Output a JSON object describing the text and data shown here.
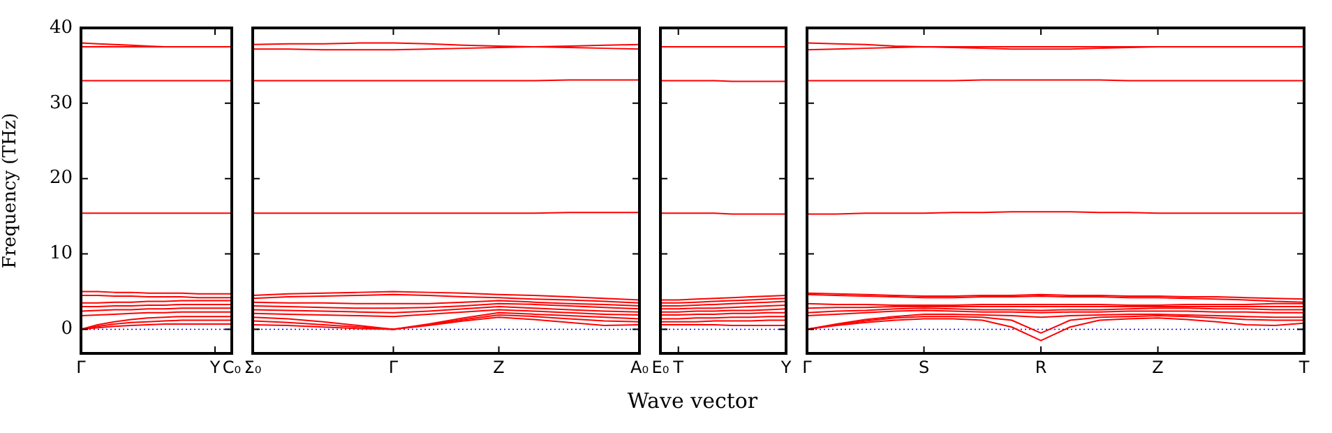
{
  "chart_data": [
    {
      "type": "line",
      "ylabel": "Frequency (THz)",
      "ylim": [
        -3.2,
        40
      ],
      "yticks": [
        0,
        10,
        20,
        30,
        40
      ],
      "marker": "none",
      "legend": false,
      "ref_lines": [
        {
          "axis": "y",
          "value": 0,
          "color": "#0000ff",
          "line_style": "dotted"
        }
      ],
      "categories": [
        "Γ",
        null,
        null,
        null,
        null,
        null,
        null,
        null,
        "Y",
        "C₀"
      ],
      "series": [
        {
          "color": "#ff0000",
          "values": [
            0,
            0.2,
            0.4,
            0.5,
            0.6,
            0.7,
            0.7,
            0.7,
            0.7,
            0.7
          ]
        },
        {
          "color": "#ff0000",
          "values": [
            0,
            0.4,
            0.7,
            0.9,
            1.0,
            1.1,
            1.2,
            1.2,
            1.2,
            1.2
          ]
        },
        {
          "color": "#ff0000",
          "values": [
            0,
            0.6,
            1.0,
            1.3,
            1.5,
            1.6,
            1.7,
            1.7,
            1.7,
            1.7
          ]
        },
        {
          "color": "#ff0000",
          "values": [
            1.8,
            1.9,
            2.0,
            2.1,
            2.2,
            2.2,
            2.3,
            2.3,
            2.3,
            2.3
          ]
        },
        {
          "color": "#ff0000",
          "values": [
            2.4,
            2.5,
            2.6,
            2.6,
            2.7,
            2.7,
            2.8,
            2.8,
            2.8,
            2.8
          ]
        },
        {
          "color": "#ff0000",
          "values": [
            3.0,
            3.0,
            3.1,
            3.1,
            3.2,
            3.2,
            3.3,
            3.3,
            3.3,
            3.3
          ]
        },
        {
          "color": "#ff0000",
          "values": [
            3.5,
            3.5,
            3.6,
            3.6,
            3.7,
            3.7,
            3.8,
            3.8,
            3.8,
            3.8
          ]
        },
        {
          "color": "#ff0000",
          "values": [
            4.5,
            4.5,
            4.4,
            4.4,
            4.3,
            4.3,
            4.3,
            4.2,
            4.2,
            4.2
          ]
        },
        {
          "color": "#ff0000",
          "values": [
            5.0,
            5.0,
            4.9,
            4.9,
            4.8,
            4.8,
            4.8,
            4.7,
            4.7,
            4.7
          ]
        },
        {
          "color": "#ff0000",
          "values": [
            15.4,
            15.4,
            15.4,
            15.4,
            15.4,
            15.4,
            15.4,
            15.4,
            15.4,
            15.4
          ]
        },
        {
          "color": "#ff0000",
          "values": [
            33.0,
            33.0,
            33.0,
            33.0,
            33.0,
            33.0,
            33.0,
            33.0,
            33.0,
            33.0
          ]
        },
        {
          "color": "#ff0000",
          "values": [
            37.5,
            37.5,
            37.5,
            37.5,
            37.5,
            37.5,
            37.5,
            37.5,
            37.5,
            37.5
          ]
        },
        {
          "color": "#ff0000",
          "values": [
            38.0,
            37.9,
            37.8,
            37.7,
            37.6,
            37.5,
            37.5,
            37.5,
            37.5,
            37.5
          ]
        }
      ]
    },
    {
      "type": "line",
      "xlabel": "Wave vector",
      "ylim": [
        -3.2,
        40
      ],
      "yticks": [
        0,
        10,
        20,
        30,
        40
      ],
      "tick_labels": "x",
      "marker": "none",
      "legend": false,
      "ref_lines": [
        {
          "axis": "y",
          "value": 0,
          "color": "#0000ff",
          "line_style": "dotted"
        }
      ],
      "categories": [
        "Σ₀",
        null,
        null,
        null,
        "Γ",
        null,
        null,
        "Z",
        null,
        null,
        null,
        "A₀"
      ],
      "series": [
        {
          "color": "#ff0000",
          "values": [
            0.6,
            0.5,
            0.3,
            0.1,
            0,
            0.5,
            1.1,
            1.6,
            1.3,
            0.9,
            0.5,
            0.6
          ]
        },
        {
          "color": "#ff0000",
          "values": [
            1.1,
            0.9,
            0.6,
            0.3,
            0,
            0.6,
            1.3,
            1.9,
            1.7,
            1.4,
            1.1,
            1.0
          ]
        },
        {
          "color": "#ff0000",
          "values": [
            1.6,
            1.4,
            1.0,
            0.5,
            0,
            0.7,
            1.5,
            2.2,
            2.0,
            1.8,
            1.6,
            1.4
          ]
        },
        {
          "color": "#ff0000",
          "values": [
            2.1,
            2.0,
            1.9,
            1.8,
            1.7,
            2.0,
            2.3,
            2.6,
            2.4,
            2.2,
            2.0,
            1.9
          ]
        },
        {
          "color": "#ff0000",
          "values": [
            2.6,
            2.5,
            2.4,
            2.3,
            2.2,
            2.4,
            2.7,
            3.0,
            2.8,
            2.6,
            2.4,
            2.3
          ]
        },
        {
          "color": "#ff0000",
          "values": [
            3.1,
            3.0,
            2.9,
            2.8,
            2.8,
            2.9,
            3.1,
            3.4,
            3.3,
            3.1,
            2.9,
            2.7
          ]
        },
        {
          "color": "#ff0000",
          "values": [
            3.6,
            3.5,
            3.5,
            3.4,
            3.4,
            3.4,
            3.6,
            3.8,
            3.6,
            3.4,
            3.3,
            3.1
          ]
        },
        {
          "color": "#ff0000",
          "values": [
            4.1,
            4.3,
            4.4,
            4.5,
            4.6,
            4.5,
            4.3,
            4.2,
            4.0,
            3.9,
            3.7,
            3.5
          ]
        },
        {
          "color": "#ff0000",
          "values": [
            4.5,
            4.7,
            4.8,
            4.9,
            5.0,
            4.9,
            4.8,
            4.6,
            4.5,
            4.3,
            4.1,
            3.9
          ]
        },
        {
          "color": "#ff0000",
          "values": [
            15.4,
            15.4,
            15.4,
            15.4,
            15.4,
            15.4,
            15.4,
            15.4,
            15.4,
            15.5,
            15.5,
            15.5
          ]
        },
        {
          "color": "#ff0000",
          "values": [
            33.0,
            33.0,
            33.0,
            33.0,
            33.0,
            33.0,
            33.0,
            33.0,
            33.0,
            33.1,
            33.1,
            33.1
          ]
        },
        {
          "color": "#ff0000",
          "values": [
            37.8,
            37.9,
            37.9,
            38.0,
            38.0,
            37.9,
            37.7,
            37.6,
            37.5,
            37.4,
            37.3,
            37.2
          ]
        },
        {
          "color": "#ff0000",
          "values": [
            37.2,
            37.2,
            37.1,
            37.1,
            37.1,
            37.2,
            37.3,
            37.4,
            37.5,
            37.6,
            37.7,
            37.8
          ]
        }
      ]
    },
    {
      "type": "line",
      "ylim": [
        -3.2,
        40
      ],
      "yticks": [
        0,
        10,
        20,
        30,
        40
      ],
      "tick_labels": "x",
      "marker": "none",
      "legend": false,
      "ref_lines": [
        {
          "axis": "y",
          "value": 0,
          "color": "#0000ff",
          "line_style": "dotted"
        }
      ],
      "categories": [
        "E₀",
        "T",
        null,
        null,
        null,
        null,
        null,
        "Y"
      ],
      "series": [
        {
          "color": "#ff0000",
          "values": [
            0.6,
            0.6,
            0.6,
            0.6,
            0.5,
            0.5,
            0.5,
            0.5
          ]
        },
        {
          "color": "#ff0000",
          "values": [
            1.0,
            1.0,
            1.0,
            1.1,
            1.1,
            1.1,
            1.2,
            1.2
          ]
        },
        {
          "color": "#ff0000",
          "values": [
            1.4,
            1.4,
            1.5,
            1.5,
            1.6,
            1.6,
            1.7,
            1.7
          ]
        },
        {
          "color": "#ff0000",
          "values": [
            1.9,
            1.9,
            2.0,
            2.0,
            2.1,
            2.1,
            2.2,
            2.2
          ]
        },
        {
          "color": "#ff0000",
          "values": [
            2.3,
            2.3,
            2.4,
            2.4,
            2.5,
            2.5,
            2.6,
            2.7
          ]
        },
        {
          "color": "#ff0000",
          "values": [
            2.7,
            2.7,
            2.8,
            2.8,
            2.9,
            3.0,
            3.1,
            3.2
          ]
        },
        {
          "color": "#ff0000",
          "values": [
            3.1,
            3.1,
            3.2,
            3.3,
            3.4,
            3.5,
            3.6,
            3.7
          ]
        },
        {
          "color": "#ff0000",
          "values": [
            3.5,
            3.5,
            3.6,
            3.7,
            3.8,
            3.9,
            4.0,
            4.1
          ]
        },
        {
          "color": "#ff0000",
          "values": [
            3.9,
            3.9,
            4.0,
            4.1,
            4.2,
            4.3,
            4.4,
            4.5
          ]
        },
        {
          "color": "#ff0000",
          "values": [
            15.4,
            15.4,
            15.4,
            15.4,
            15.3,
            15.3,
            15.3,
            15.3
          ]
        },
        {
          "color": "#ff0000",
          "values": [
            33.0,
            33.0,
            33.0,
            33.0,
            32.9,
            32.9,
            32.9,
            32.9
          ]
        },
        {
          "color": "#ff0000",
          "values": [
            37.5,
            37.5,
            37.5,
            37.5,
            37.5,
            37.5,
            37.5,
            37.5
          ]
        }
      ]
    },
    {
      "type": "line",
      "ylim": [
        -3.2,
        40
      ],
      "yticks": [
        0,
        10,
        20,
        30,
        40
      ],
      "tick_labels": "x",
      "marker": "none",
      "legend": false,
      "ref_lines": [
        {
          "axis": "y",
          "value": 0,
          "color": "#0000ff",
          "line_style": "dotted"
        }
      ],
      "categories": [
        "Γ",
        null,
        null,
        null,
        "S",
        null,
        null,
        null,
        "R",
        null,
        null,
        null,
        "Z",
        null,
        null,
        null,
        null,
        "T"
      ],
      "series": [
        {
          "color": "#ff0000",
          "values": [
            0,
            0.5,
            0.9,
            1.2,
            1.4,
            1.4,
            1.2,
            0.3,
            -1.5,
            0.3,
            1.2,
            1.4,
            1.5,
            1.3,
            1.0,
            0.6,
            0.5,
            0.8
          ]
        },
        {
          "color": "#ff0000",
          "values": [
            0,
            0.6,
            1.1,
            1.5,
            1.7,
            1.7,
            1.6,
            1.2,
            -0.5,
            1.2,
            1.6,
            1.7,
            1.8,
            1.7,
            1.5,
            1.3,
            1.2,
            1.2
          ]
        },
        {
          "color": "#ff0000",
          "values": [
            0,
            0.7,
            1.3,
            1.7,
            2.0,
            2.0,
            1.9,
            1.8,
            1.6,
            1.8,
            1.9,
            2.0,
            2.0,
            1.9,
            1.8,
            1.7,
            1.6,
            1.6
          ]
        },
        {
          "color": "#ff0000",
          "values": [
            1.8,
            2.0,
            2.2,
            2.4,
            2.5,
            2.4,
            2.3,
            2.3,
            2.2,
            2.3,
            2.3,
            2.4,
            2.4,
            2.4,
            2.3,
            2.3,
            2.2,
            2.2
          ]
        },
        {
          "color": "#ff0000",
          "values": [
            2.2,
            2.4,
            2.5,
            2.7,
            2.8,
            2.7,
            2.6,
            2.6,
            2.5,
            2.6,
            2.6,
            2.7,
            2.8,
            2.8,
            2.7,
            2.7,
            2.6,
            2.6
          ]
        },
        {
          "color": "#ff0000",
          "values": [
            2.8,
            2.9,
            2.9,
            3.0,
            3.0,
            3.0,
            3.0,
            3.0,
            3.0,
            3.0,
            3.0,
            3.0,
            3.0,
            3.0,
            3.0,
            3.0,
            3.0,
            3.0
          ]
        },
        {
          "color": "#ff0000",
          "values": [
            3.4,
            3.3,
            3.3,
            3.2,
            3.2,
            3.2,
            3.3,
            3.3,
            3.3,
            3.3,
            3.3,
            3.2,
            3.2,
            3.3,
            3.3,
            3.3,
            3.4,
            3.4
          ]
        },
        {
          "color": "#ff0000",
          "values": [
            4.6,
            4.5,
            4.4,
            4.3,
            4.2,
            4.2,
            4.3,
            4.3,
            4.4,
            4.3,
            4.3,
            4.2,
            4.2,
            4.1,
            4.0,
            3.9,
            3.7,
            3.6
          ]
        },
        {
          "color": "#ff0000",
          "values": [
            4.8,
            4.7,
            4.6,
            4.5,
            4.4,
            4.4,
            4.5,
            4.5,
            4.6,
            4.5,
            4.5,
            4.4,
            4.4,
            4.3,
            4.3,
            4.2,
            4.1,
            4.0
          ]
        },
        {
          "color": "#ff0000",
          "values": [
            15.3,
            15.3,
            15.4,
            15.4,
            15.4,
            15.5,
            15.5,
            15.6,
            15.6,
            15.6,
            15.5,
            15.5,
            15.4,
            15.4,
            15.4,
            15.4,
            15.4,
            15.4
          ]
        },
        {
          "color": "#ff0000",
          "values": [
            33.0,
            33.0,
            33.0,
            33.0,
            33.0,
            33.0,
            33.1,
            33.1,
            33.1,
            33.1,
            33.1,
            33.0,
            33.0,
            33.0,
            33.0,
            33.0,
            33.0,
            33.0
          ]
        },
        {
          "color": "#ff0000",
          "values": [
            38.0,
            37.9,
            37.8,
            37.6,
            37.5,
            37.5,
            37.5,
            37.5,
            37.5,
            37.5,
            37.5,
            37.5,
            37.5,
            37.5,
            37.5,
            37.5,
            37.5,
            37.5
          ]
        },
        {
          "color": "#ff0000",
          "values": [
            37.1,
            37.2,
            37.3,
            37.4,
            37.5,
            37.4,
            37.3,
            37.2,
            37.2,
            37.2,
            37.3,
            37.4,
            37.5,
            37.5,
            37.5,
            37.5,
            37.5,
            37.5
          ]
        }
      ]
    }
  ]
}
